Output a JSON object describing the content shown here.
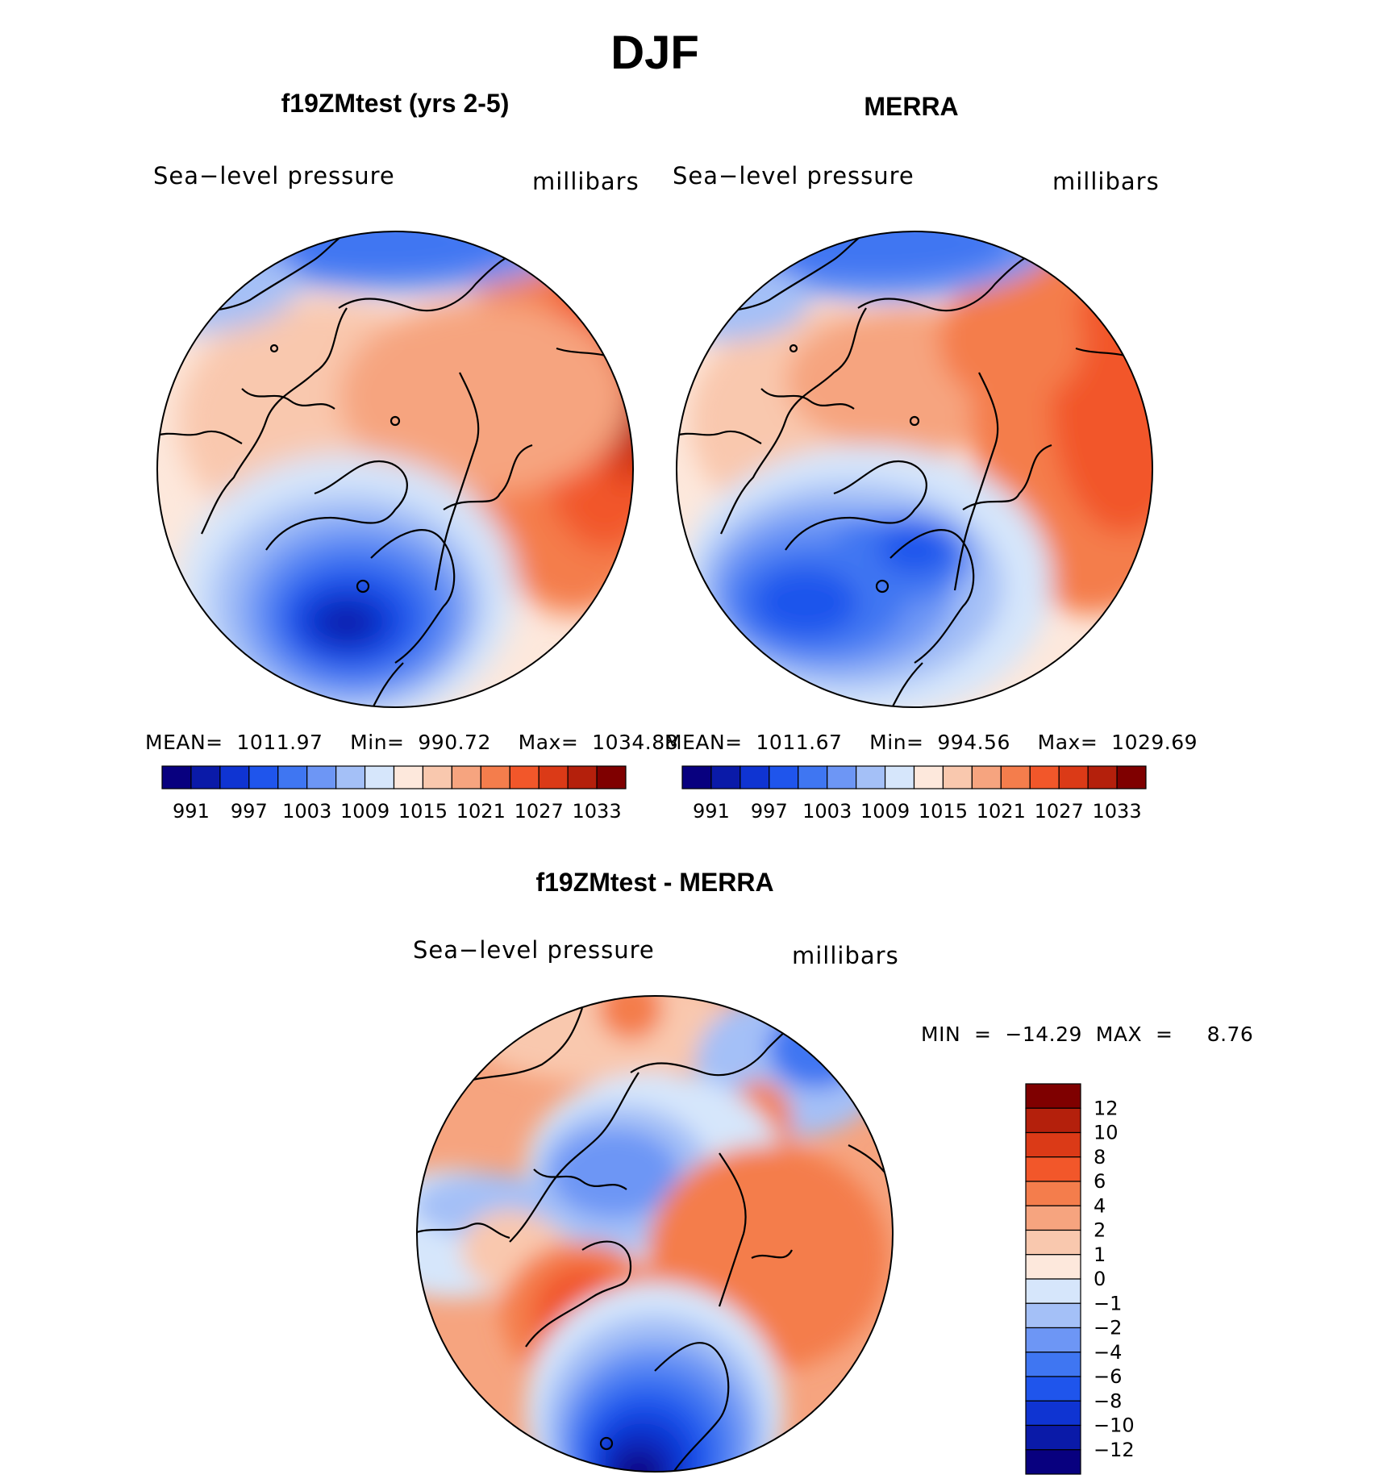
{
  "figure": {
    "title": "DJF",
    "panels": [
      {
        "title": "f19ZMtest (yrs 2-5)",
        "left_label": "Sea−level pressure",
        "right_label": "millibars",
        "stats": "MEAN=  1011.97    Min=  990.72    Max=  1034.88"
      },
      {
        "title": "MERRA",
        "left_label": "Sea−level pressure",
        "right_label": "millibars",
        "stats": "MEAN=  1011.67    Min=  994.56    Max=  1029.69"
      },
      {
        "title": "f19ZMtest - MERRA",
        "left_label": "Sea−level pressure",
        "right_label": "millibars",
        "stats": "MIN  =  −14.29  MAX  =     8.76"
      }
    ],
    "slp_colorbar": {
      "colors": [
        "#08007f",
        "#0a1aa8",
        "#0f34d2",
        "#1f55ec",
        "#3f76f2",
        "#6d96f5",
        "#a4c0f7",
        "#d6e6fb",
        "#fde8dc",
        "#f9c8ae",
        "#f6a47f",
        "#f47d4c",
        "#f2572a",
        "#db3a17",
        "#b4200c",
        "#7f0000"
      ],
      "tick_labels": [
        "991",
        "997",
        "1003",
        "1009",
        "1015",
        "1021",
        "1027",
        "1033"
      ]
    },
    "diff_colorbar": {
      "colors": [
        "#7f0000",
        "#b4200c",
        "#db3a17",
        "#f2572a",
        "#f47d4c",
        "#f6a47f",
        "#f9c8ae",
        "#fde8dc",
        "#d6e6fb",
        "#a4c0f7",
        "#6d96f5",
        "#3f76f2",
        "#1f55ec",
        "#0f34d2",
        "#0a1aa8",
        "#08007f"
      ],
      "tick_labels": [
        "12",
        "10",
        "8",
        "6",
        "4",
        "2",
        "1",
        "0",
        "−1",
        "−2",
        "−4",
        "−6",
        "−8",
        "−10",
        "−12"
      ]
    }
  }
}
